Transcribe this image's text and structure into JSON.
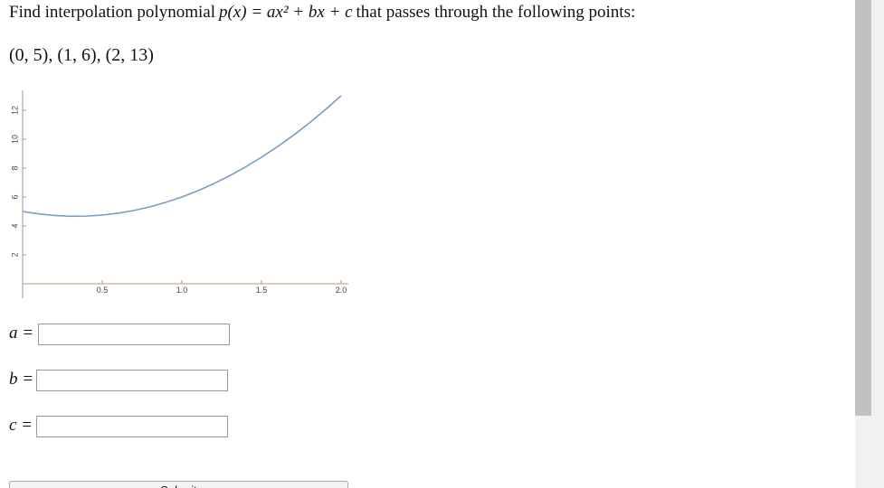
{
  "question": {
    "prefix": "Find interpolation polynomial",
    "formula": "p(x) = ax² + bx + c",
    "suffix": "that passes through the following points:"
  },
  "points": "(0, 5), (1, 6), (2, 13)",
  "chart_data": {
    "type": "line",
    "x": [
      0,
      0.1,
      0.2,
      0.3,
      0.4,
      0.5,
      0.6,
      0.7,
      0.8,
      0.9,
      1,
      1.1,
      1.2,
      1.3,
      1.4,
      1.5,
      1.6,
      1.7,
      1.8,
      1.9,
      2
    ],
    "series": [
      {
        "color": "#7b9cc4",
        "values": [
          5,
          4.83,
          4.72,
          4.67,
          4.68,
          4.75,
          4.88,
          5.07,
          5.32,
          5.63,
          6,
          6.43,
          6.92,
          7.47,
          8.08,
          8.75,
          9.48,
          10.27,
          11.12,
          12.03,
          13
        ]
      }
    ],
    "xlim": [
      0,
      2.05
    ],
    "ylim": [
      0,
      13.5
    ],
    "xticks": [
      0.5,
      {
        "value": 1,
        "label": "1.0"
      },
      1.5,
      {
        "value": 2,
        "label": "2.0"
      }
    ],
    "yticks": [
      2,
      4,
      6,
      8,
      10,
      12
    ]
  },
  "inputs": [
    {
      "label": "a ="
    },
    {
      "label": "b ="
    },
    {
      "label": "c ="
    }
  ],
  "button": "Submit"
}
